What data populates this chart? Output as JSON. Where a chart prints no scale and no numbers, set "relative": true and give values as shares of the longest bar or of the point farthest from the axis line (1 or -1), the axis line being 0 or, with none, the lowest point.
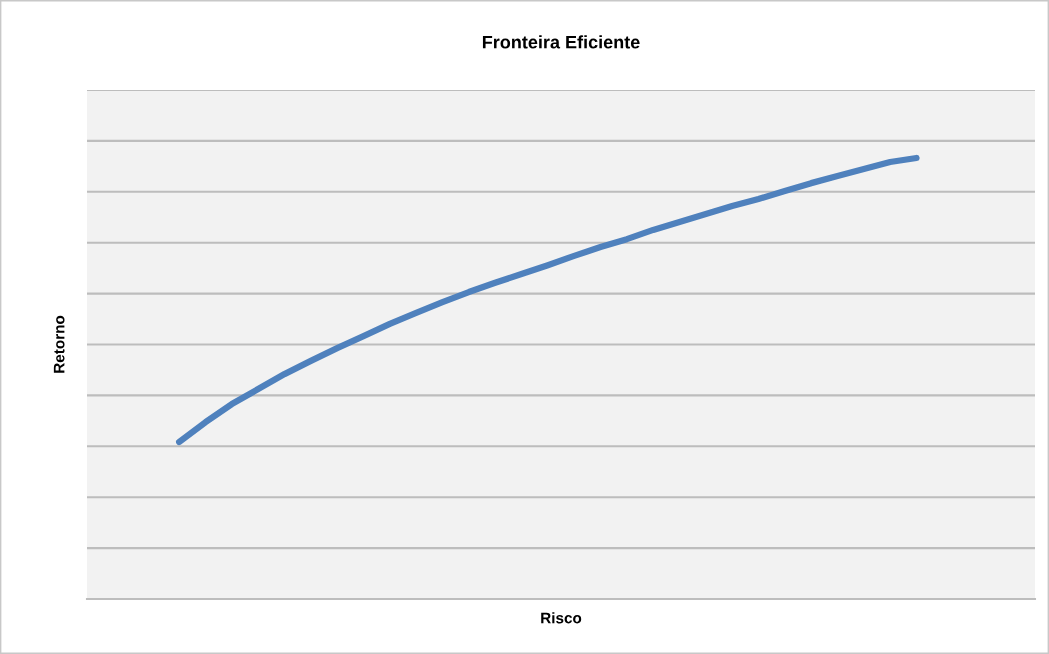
{
  "chart_data": {
    "type": "line",
    "title": "Fronteira Eficiente",
    "xlabel": "Risco",
    "ylabel": "Retorno",
    "relative": true,
    "grid": "y",
    "marker": "none",
    "line_style": "solid",
    "categories": [
      null,
      null,
      null,
      null,
      null,
      null,
      null,
      null,
      null,
      null,
      null,
      null,
      null,
      null,
      null,
      null,
      null,
      null,
      null,
      null,
      null,
      null,
      null,
      null,
      null,
      null,
      null,
      null,
      null,
      null,
      null,
      null,
      null,
      null,
      null,
      null
    ],
    "series": [
      {
        "color": "#4f81bd",
        "values": [
          null,
          null,
          null,
          0.356,
          0.401,
          0.442,
          0.476,
          0.51,
          0.54,
          0.569,
          0.596,
          0.624,
          0.649,
          0.673,
          0.696,
          0.717,
          0.737,
          0.757,
          0.778,
          0.798,
          0.816,
          0.837,
          0.855,
          0.873,
          0.891,
          0.907,
          0.925,
          0.943,
          0.959,
          0.975,
          0.991,
          1,
          null,
          null,
          null,
          null
        ]
      }
    ]
  }
}
